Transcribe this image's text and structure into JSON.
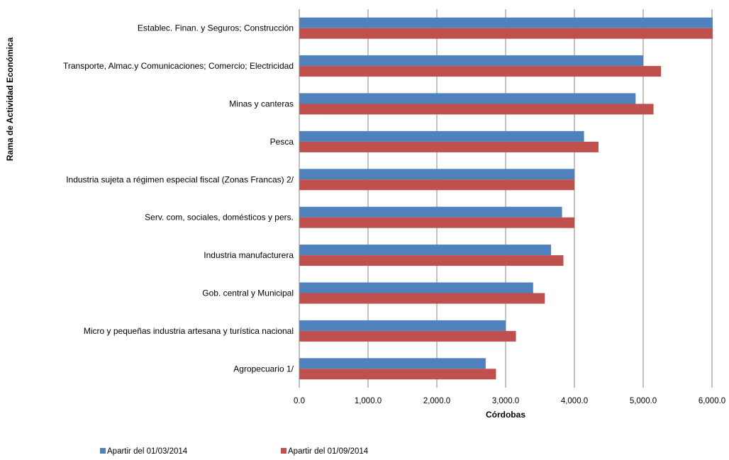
{
  "chart_data": {
    "type": "bar",
    "orientation": "horizontal",
    "title": "",
    "xlabel": "Córdobas",
    "ylabel": "Rama de Actividad Económica",
    "xlim": [
      0,
      6000
    ],
    "xticks": [
      0,
      1000,
      2000,
      3000,
      4000,
      5000,
      6000
    ],
    "xtick_labels": [
      "0.0",
      "1,000.0",
      "2,000.0",
      "3,000.0",
      "4,000.0",
      "5,000.0",
      "6,000.0"
    ],
    "grid": "vertical",
    "legend_position": "bottom-left",
    "categories": [
      "Establec. Finan. y Seguros; Construcción",
      "Transporte, Almac.y Comunicaciones; Comercio; Electricidad",
      "Minas y canteras",
      "Pesca",
      "Industria sujeta a régimen especial fiscal (Zonas Francas) 2/",
      "Serv. com, sociales, domésticos y pers.",
      "Industria manufacturera",
      "Gob. central y Municipal",
      "Micro y pequeñas industria artesana y turística nacional",
      "Agropecuario 1/"
    ],
    "series": [
      {
        "name": "Apartir del 01/03/2014",
        "color": "#4f81bd",
        "values": [
          6010,
          5000,
          4890,
          4140,
          4000,
          3820,
          3660,
          3400,
          3000,
          2710
        ]
      },
      {
        "name": "Apartir del 01/09/2014",
        "color": "#c0504d",
        "values": [
          6010,
          5260,
          5150,
          4350,
          4000,
          4000,
          3840,
          3570,
          3150,
          2860
        ]
      }
    ]
  }
}
